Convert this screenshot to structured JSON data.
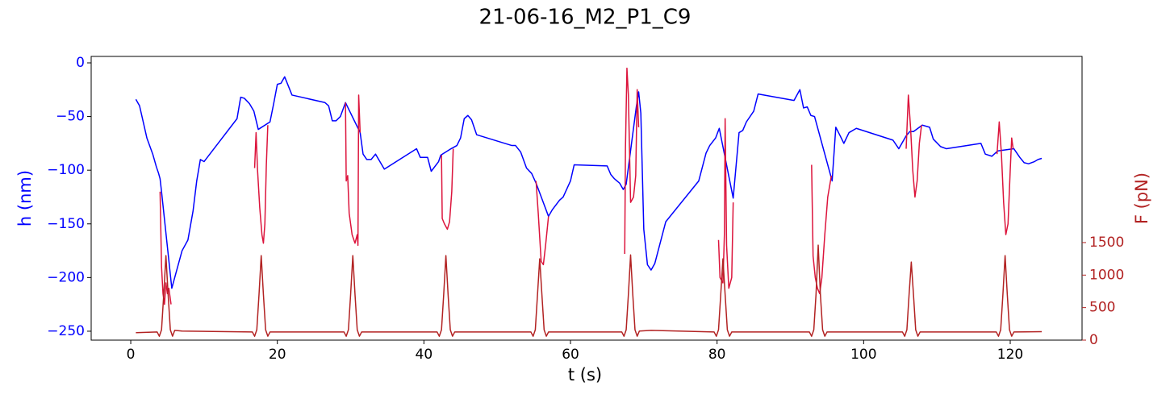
{
  "chart_data": {
    "type": "line",
    "title": "21-06-16_M2_P1_C9",
    "x_label": "t (s)",
    "y_label": "h (nm)",
    "y2_label": "F (pN)",
    "xlim": [
      -5.4,
      129.8
    ],
    "xticks": [
      0,
      20,
      40,
      60,
      80,
      100,
      120
    ],
    "ylim": [
      -258.3,
      6
    ],
    "yticks": [
      {
        "value": -250,
        "label": "−250"
      },
      {
        "value": -200,
        "label": "−200"
      },
      {
        "value": -150,
        "label": "−150"
      },
      {
        "value": -100,
        "label": "−100"
      },
      {
        "value": -50,
        "label": "−50"
      },
      0
    ],
    "y2lim": [
      0,
      4362
    ],
    "y2ticks": [
      0,
      500,
      1000,
      1500
    ],
    "y_color": "blue",
    "y2_color": "#b22222",
    "series": [
      {
        "color": "blue",
        "axis": "y",
        "x": [
          0.7,
          1.2,
          2.2,
          3.0,
          3.5,
          3.8,
          4.0,
          4.2,
          5.6,
          6.0,
          7.0,
          7.8,
          8.5,
          9.0,
          9.5,
          10.0,
          14.5,
          15.0,
          15.5,
          16.2,
          16.8,
          17.4,
          19.0,
          19.5,
          20.0,
          20.5,
          21.0,
          22.0,
          26.5,
          27.0,
          27.5,
          28.0,
          28.6,
          29.3,
          31.3,
          31.7,
          32.2,
          32.8,
          33.4,
          34.6,
          39.0,
          39.5,
          40.5,
          41.0,
          42.0,
          42.3,
          43.7,
          44.5,
          45.0,
          45.5,
          46.0,
          46.5,
          47.2,
          52.0,
          52.5,
          53.2,
          54.0,
          54.7,
          55.3,
          57.0,
          57.5,
          58.5,
          59.0,
          60.0,
          60.5,
          65.0,
          65.5,
          66.0,
          66.7,
          67.2,
          67.6,
          69.0,
          69.3,
          69.6,
          70.0,
          70.5,
          71.0,
          71.5,
          73.0,
          77.5,
          78.5,
          79.0,
          79.8,
          80.3,
          82.2,
          83.0,
          83.5,
          84.0,
          85.0,
          85.6,
          90.5,
          91.3,
          91.8,
          92.3,
          92.8,
          93.3,
          95.7,
          96.2,
          96.8,
          97.3,
          98.0,
          99.0,
          104.0,
          104.8,
          105.8,
          106.3,
          106.8,
          108.0,
          109.0,
          109.5,
          110.5,
          111.3,
          116.0,
          116.6,
          117.5,
          118.3,
          120.5,
          121.3,
          121.9,
          122.5,
          123.3,
          123.8,
          124.3
        ],
        "values": [
          -34,
          -40,
          -70,
          -85,
          -97,
          -103,
          -108,
          -120,
          -210,
          -200,
          -175,
          -165,
          -138,
          -110,
          -90,
          -92,
          -52,
          -32,
          -33,
          -38,
          -45,
          -62,
          -55,
          -38,
          -20,
          -19,
          -13,
          -30,
          -37,
          -40,
          -54,
          -54,
          -50,
          -37,
          -65,
          -85,
          -90,
          -90,
          -85,
          -99,
          -80,
          -88,
          -88,
          -101,
          -92,
          -86,
          -80,
          -77,
          -70,
          -52,
          -49,
          -53,
          -67,
          -77,
          -77,
          -83,
          -98,
          -103,
          -112,
          -143,
          -137,
          -128,
          -125,
          -110,
          -95,
          -96,
          -104,
          -108,
          -112,
          -118,
          -113,
          -40,
          -27,
          -47,
          -155,
          -188,
          -193,
          -187,
          -148,
          -110,
          -84,
          -77,
          -70,
          -61,
          -126,
          -65,
          -63,
          -55,
          -45,
          -29,
          -35,
          -25,
          -42,
          -41,
          -49,
          -50,
          -110,
          -60,
          -68,
          -75,
          -65,
          -61,
          -72,
          -80,
          -68,
          -64,
          -64,
          -58,
          -60,
          -71,
          -78,
          -80,
          -75,
          -85,
          -87,
          -82,
          -80,
          -88,
          -93,
          -94,
          -92,
          -90,
          -89
        ]
      },
      {
        "color": "crimson",
        "axis": "y",
        "x": [
          4.0,
          4.2,
          4.4,
          4.6,
          4.8,
          5.0,
          5.2,
          5.5,
          null,
          16.9,
          17.1,
          17.3,
          17.6,
          17.9,
          18.1,
          18.3,
          18.5,
          18.7,
          null,
          29.3,
          29.4,
          29.6,
          29.8,
          30.2,
          30.6,
          30.9,
          31.0,
          31.1,
          31.3,
          null,
          42.4,
          42.5,
          42.8,
          43.2,
          43.5,
          43.8,
          44.0,
          null,
          55.3,
          55.6,
          56.0,
          56.3,
          56.6,
          57.0,
          null,
          67.4,
          67.5,
          67.7,
          67.9,
          68.2,
          68.6,
          68.9,
          69.1,
          69.3,
          null,
          80.2,
          80.4,
          80.8,
          81.0,
          81.1,
          81.3,
          81.6,
          82.0,
          82.2,
          null,
          92.9,
          93.1,
          93.4,
          93.7,
          94.0,
          94.3,
          94.7,
          95.1,
          95.6,
          null,
          105.8,
          106.1,
          106.4,
          106.7,
          107.0,
          107.3,
          107.6,
          107.9,
          null,
          118.2,
          118.5,
          118.8,
          119.1,
          119.4,
          119.7,
          120.0,
          120.2,
          120.4
        ],
        "values": [
          -120,
          -190,
          -215,
          -225,
          -205,
          -215,
          -210,
          -225,
          null,
          -98,
          -65,
          -100,
          -135,
          -160,
          -168,
          -150,
          -95,
          -58,
          null,
          -37,
          -110,
          -105,
          -140,
          -160,
          -168,
          -160,
          -170,
          -30,
          -65,
          null,
          -86,
          -145,
          -150,
          -155,
          -148,
          -120,
          -80,
          null,
          -110,
          -140,
          -185,
          -188,
          -170,
          -143,
          null,
          -178,
          -80,
          -5,
          -30,
          -130,
          -125,
          -105,
          -25,
          -60,
          null,
          -165,
          -200,
          -205,
          -160,
          -52,
          -170,
          -210,
          -200,
          -130,
          null,
          -95,
          -180,
          -200,
          -210,
          -215,
          -200,
          -160,
          -125,
          -105,
          null,
          -80,
          -30,
          -60,
          -100,
          -125,
          -110,
          -75,
          -58,
          null,
          -85,
          -55,
          -85,
          -130,
          -160,
          -150,
          -100,
          -70,
          -80
        ]
      },
      {
        "color": "#b22222",
        "axis": "y2",
        "x": [
          0.7,
          3.6,
          3.9,
          4.2,
          4.5,
          4.8,
          5.1,
          5.4,
          5.7,
          6.0,
          7.0,
          16.6,
          16.9,
          17.2,
          17.5,
          17.8,
          18.1,
          18.4,
          18.7,
          19.0,
          29.1,
          29.4,
          29.7,
          30.0,
          30.3,
          30.6,
          30.9,
          31.2,
          31.5,
          41.8,
          42.1,
          42.4,
          42.7,
          43.0,
          43.3,
          43.6,
          43.9,
          44.2,
          54.6,
          54.9,
          55.2,
          55.5,
          55.8,
          56.1,
          56.4,
          56.7,
          57.0,
          67.0,
          67.3,
          67.6,
          67.9,
          68.2,
          68.5,
          68.8,
          69.1,
          69.4,
          71.0,
          79.6,
          79.9,
          80.2,
          80.5,
          80.8,
          81.1,
          81.4,
          81.7,
          82.0,
          92.6,
          92.9,
          93.2,
          93.5,
          93.8,
          94.1,
          94.4,
          94.7,
          95.0,
          105.3,
          105.6,
          105.9,
          106.2,
          106.5,
          106.8,
          107.1,
          107.4,
          107.7,
          118.1,
          118.4,
          118.7,
          119.0,
          119.3,
          119.6,
          119.9,
          120.2,
          120.5,
          124.3
        ],
        "values": [
          115,
          125,
          60,
          160,
          700,
          1300,
          700,
          160,
          60,
          150,
          140,
          125,
          60,
          160,
          700,
          1300,
          700,
          160,
          60,
          125,
          125,
          60,
          160,
          700,
          1300,
          700,
          160,
          60,
          125,
          125,
          60,
          160,
          700,
          1300,
          700,
          160,
          60,
          125,
          125,
          60,
          160,
          700,
          1250,
          700,
          160,
          60,
          125,
          125,
          60,
          160,
          700,
          1310,
          700,
          160,
          60,
          140,
          150,
          125,
          60,
          160,
          700,
          1250,
          700,
          160,
          60,
          125,
          125,
          60,
          160,
          700,
          1460,
          700,
          160,
          60,
          125,
          125,
          60,
          160,
          700,
          1200,
          700,
          160,
          60,
          125,
          125,
          60,
          160,
          700,
          1300,
          700,
          160,
          60,
          125,
          130
        ]
      }
    ]
  }
}
